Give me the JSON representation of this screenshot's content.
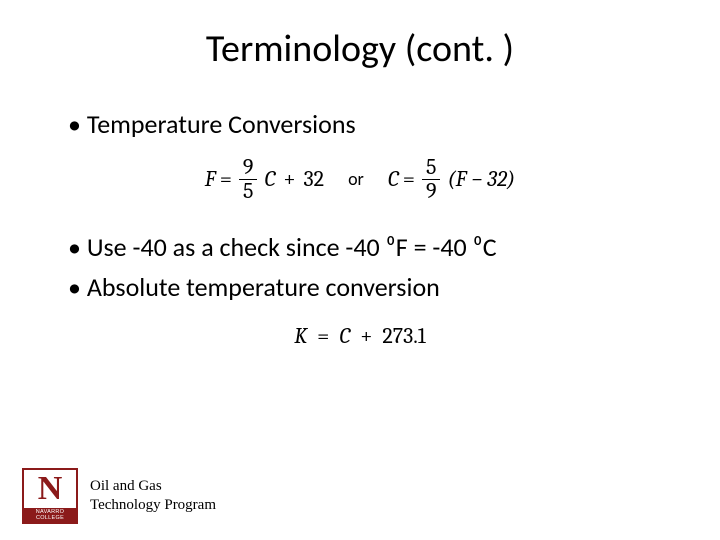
{
  "title": "Terminology (cont. )",
  "bullets": {
    "b1": "Temperature Conversions",
    "b2": "Use -40 as a check since -40 ⁰F = -40 ⁰C",
    "b3": "Absolute temperature conversion"
  },
  "formulas": {
    "f1_lhs": "F",
    "f1_eq": "=",
    "f1_num": "9",
    "f1_den": "5",
    "f1_c": "C",
    "f1_plus": "+",
    "f1_const": "32",
    "or": "or",
    "f2_lhs": "C",
    "f2_eq": "=",
    "f2_num": "5",
    "f2_den": "9",
    "f2_rest": "(F − 32)",
    "f3_lhs": "K",
    "f3_eq": "=",
    "f3_c": "C",
    "f3_plus": "+",
    "f3_const": "273.1"
  },
  "footer": {
    "logo_letter": "N",
    "logo_bar": "NAVARRO COLLEGE",
    "program_line1": "Oil and Gas",
    "program_line2": "Technology Program"
  },
  "colors": {
    "text": "#000000",
    "brand": "#8b1a1a",
    "bg": "#ffffff"
  }
}
